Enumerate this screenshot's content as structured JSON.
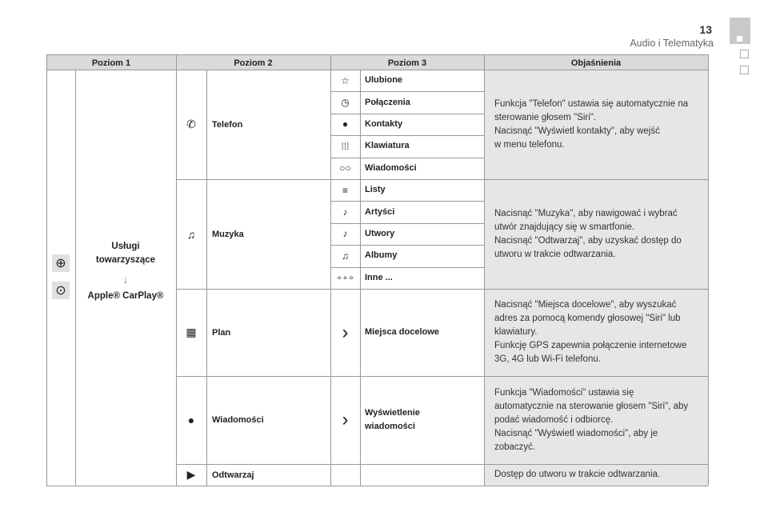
{
  "header": {
    "page_number": "13",
    "section": "Audio i Telematyka"
  },
  "columns": [
    "Poziom 1",
    "Poziom 2",
    "Poziom 3",
    "Objaśnienia"
  ],
  "level1": {
    "title": "Usługi\ntowarzyszące",
    "subtitle": "Apple® CarPlay®",
    "icons": [
      "globe-icon",
      "carplay-icon"
    ]
  },
  "rows": [
    {
      "level2": "Telefon",
      "icon": "phone-icon",
      "level3": [
        {
          "label": "Ulubione",
          "icon": "star-icon"
        },
        {
          "label": "Połączenia",
          "icon": "clock-icon"
        },
        {
          "label": "Kontakty",
          "icon": "contact-icon"
        },
        {
          "label": "Klawiatura",
          "icon": "keypad-icon"
        },
        {
          "label": "Wiadomości",
          "icon": "voicemail-icon"
        }
      ],
      "explanation": "Funkcja \"Telefon\" ustawia się automatycznie na\nsterowanie głosem \"Siri\".\nNacisnąć \"Wyświetl kontakty\", aby wejść\nw menu telefonu."
    },
    {
      "level2": "Muzyka",
      "icon": "music-note-icon",
      "level3": [
        {
          "label": "Listy",
          "icon": "playlist-icon"
        },
        {
          "label": "Artyści",
          "icon": "artist-icon"
        },
        {
          "label": "Utwory",
          "icon": "note-icon"
        },
        {
          "label": "Albumy",
          "icon": "album-icon"
        },
        {
          "label": "Inne ...",
          "icon": "more-icon"
        }
      ],
      "explanation": "Nacisnąć \"Muzyka\", aby nawigować i wybrać\nutwór znajdujący się w smartfonie.\nNacisnąć \"Odtwarzaj\", aby uzyskać dostęp do\nutworu w trakcie odtwarzania."
    },
    {
      "level2": "Plan",
      "icon": "map-icon",
      "level3": [
        {
          "label": "Miejsca docelowe",
          "icon": "chevron-right-icon"
        }
      ],
      "explanation": "Nacisnąć \"Miejsca docelowe\", aby wyszukać\nadres za pomocą komendy głosowej \"Siri\" lub\nklawiatury.\nFunkcję GPS zapewnia połączenie internetowe\n3G, 4G lub Wi-Fi telefonu."
    },
    {
      "level2": "Wiadomości",
      "icon": "message-bubble-icon",
      "level3": [
        {
          "label": "Wyświetlenie\nwiadomości",
          "icon": "chevron-right-icon"
        }
      ],
      "explanation": "Funkcja \"Wiadomości\" ustawia się\nautomatycznie na sterowanie głosem \"Siri\", aby\npodać wiadomość i odbiorcę.\nNacisnąć \"Wyświetl wiadomości\", aby je\nzobaczyć."
    },
    {
      "level2": "Odtwarzaj",
      "icon": "play-icon",
      "level3": [],
      "explanation": "Dostęp do utworu w trakcie odtwarzania."
    }
  ]
}
